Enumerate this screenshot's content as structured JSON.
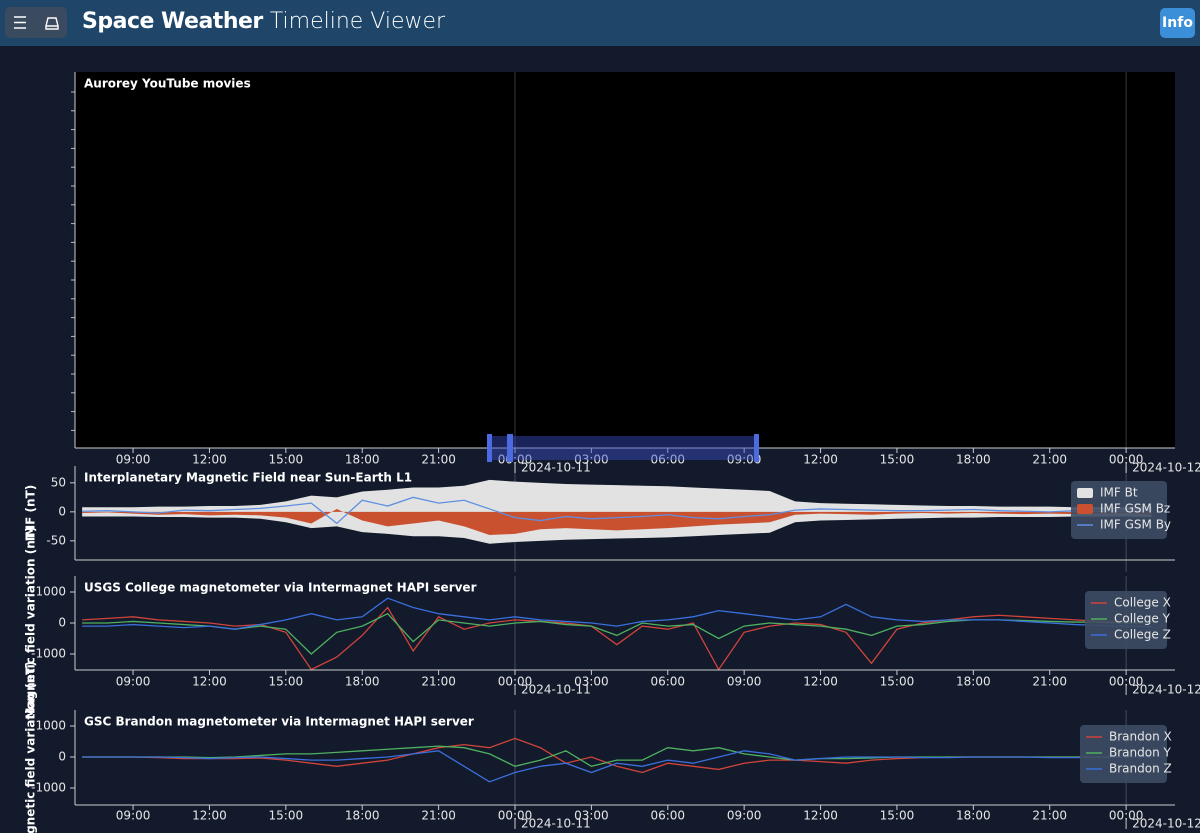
{
  "header": {
    "title_bold": "Space Weather",
    "title_light": "Timeline Viewer",
    "info_button": "Info"
  },
  "chart_data": [
    {
      "type": "timeline",
      "title": "Aurorey YouTube movies",
      "xlim": [
        6.72,
        49.92
      ],
      "xticks": [
        {
          "value": 9,
          "label": "09:00"
        },
        {
          "value": 12,
          "label": "12:00"
        },
        {
          "value": 15,
          "label": "15:00"
        },
        {
          "value": 18,
          "label": "18:00"
        },
        {
          "value": 21,
          "label": "21:00"
        },
        {
          "value": 24,
          "label": "00:00"
        },
        {
          "value": 27,
          "label": "03:00"
        },
        {
          "value": 30,
          "label": "06:00"
        },
        {
          "value": 33,
          "label": "09:00"
        },
        {
          "value": 36,
          "label": "12:00"
        },
        {
          "value": 39,
          "label": "15:00"
        },
        {
          "value": 42,
          "label": "18:00"
        },
        {
          "value": 45,
          "label": "21:00"
        },
        {
          "value": 48,
          "label": "00:00"
        }
      ],
      "day_labels": [
        {
          "value": 24,
          "label": "2024-10-11"
        },
        {
          "value": 48,
          "label": "2024-10-12"
        }
      ]
    },
    {
      "type": "line",
      "title": "Interplanetary Magnetic Field near Sun-Earth L1",
      "ylabel": "IMF (nT)",
      "xlim": [
        6.72,
        49.92
      ],
      "ylim": [
        -83,
        79
      ],
      "yticks": [
        50,
        0,
        -50
      ],
      "day_lines": [
        24,
        48
      ],
      "legend": "top-right",
      "x": [
        7,
        8,
        9,
        10,
        11,
        12,
        13,
        14,
        15,
        16,
        17,
        18,
        19,
        20,
        21,
        22,
        23,
        24,
        25,
        26,
        27,
        28,
        29,
        30,
        31,
        32,
        33,
        34,
        35,
        36,
        37,
        38,
        39,
        40,
        41,
        42,
        43,
        44,
        45,
        46,
        47,
        48,
        49
      ],
      "series": [
        {
          "name": "IMF Bt",
          "style": "band",
          "color": "#e2e2e2",
          "values": [
            8,
            8,
            8,
            9,
            9,
            10,
            10,
            12,
            18,
            28,
            25,
            35,
            38,
            42,
            42,
            45,
            55,
            52,
            50,
            48,
            47,
            46,
            45,
            44,
            42,
            40,
            38,
            36,
            18,
            15,
            14,
            13,
            12,
            11,
            10,
            10,
            9,
            9,
            9,
            8,
            8,
            8,
            9
          ]
        },
        {
          "name": "IMF GSM Bz",
          "style": "area",
          "color": "#c9512f",
          "values": [
            -2,
            -1,
            -3,
            -5,
            -4,
            -6,
            -5,
            -6,
            -10,
            -20,
            5,
            -15,
            -25,
            -20,
            -15,
            -25,
            -40,
            -38,
            -30,
            -28,
            -30,
            -32,
            -30,
            -28,
            -25,
            -22,
            -20,
            -18,
            -5,
            -3,
            -4,
            -5,
            -3,
            -2,
            -3,
            -2,
            -3,
            -4,
            -3,
            -4,
            -3,
            -2,
            -5
          ]
        },
        {
          "name": "IMF GSM By",
          "style": "line",
          "color": "#5f8fe0",
          "values": [
            1,
            2,
            0,
            -2,
            3,
            2,
            4,
            6,
            10,
            15,
            -20,
            20,
            10,
            25,
            15,
            20,
            5,
            -10,
            -15,
            -8,
            -12,
            -10,
            -8,
            -5,
            -10,
            -12,
            -8,
            -5,
            3,
            5,
            4,
            3,
            2,
            2,
            3,
            4,
            2,
            1,
            0,
            2,
            3,
            2,
            1
          ]
        }
      ]
    },
    {
      "type": "line",
      "title": "USGS College magnetometer via Intermagnet HAPI server",
      "ylabel": "Magnetic field variation (nT)",
      "xlim": [
        6.72,
        49.92
      ],
      "ylim": [
        -1516,
        1516
      ],
      "yticks": [
        1000,
        0,
        -1000
      ],
      "legend": "top-right",
      "xticks": [
        {
          "value": 9,
          "label": "09:00"
        },
        {
          "value": 12,
          "label": "12:00"
        },
        {
          "value": 15,
          "label": "15:00"
        },
        {
          "value": 18,
          "label": "18:00"
        },
        {
          "value": 21,
          "label": "21:00"
        },
        {
          "value": 24,
          "label": "00:00"
        },
        {
          "value": 27,
          "label": "03:00"
        },
        {
          "value": 30,
          "label": "06:00"
        },
        {
          "value": 33,
          "label": "09:00"
        },
        {
          "value": 36,
          "label": "12:00"
        },
        {
          "value": 39,
          "label": "15:00"
        },
        {
          "value": 42,
          "label": "18:00"
        },
        {
          "value": 45,
          "label": "21:00"
        },
        {
          "value": 48,
          "label": "00:00"
        }
      ],
      "day_labels": [
        {
          "value": 24,
          "label": "2024-10-11"
        },
        {
          "value": 48,
          "label": "2024-10-12"
        }
      ],
      "x": [
        7,
        8,
        9,
        10,
        11,
        12,
        13,
        14,
        15,
        16,
        17,
        18,
        19,
        20,
        21,
        22,
        23,
        24,
        25,
        26,
        27,
        28,
        29,
        30,
        31,
        32,
        33,
        34,
        35,
        36,
        37,
        38,
        39,
        40,
        41,
        42,
        43,
        44,
        45,
        46,
        47,
        48,
        49
      ],
      "series": [
        {
          "name": "College X",
          "style": "line",
          "color": "#d0443a",
          "values": [
            100,
            150,
            200,
            100,
            50,
            0,
            -100,
            -50,
            -300,
            -1500,
            -1100,
            -400,
            500,
            -900,
            200,
            -200,
            0,
            100,
            50,
            0,
            -100,
            -700,
            -100,
            -200,
            0,
            -1500,
            -300,
            -100,
            0,
            -50,
            -300,
            -1300,
            -200,
            0,
            100,
            200,
            250,
            200,
            150,
            100,
            50,
            20,
            0
          ]
        },
        {
          "name": "College Y",
          "style": "line",
          "color": "#4fb160",
          "values": [
            0,
            0,
            50,
            0,
            -50,
            -100,
            -200,
            -100,
            -200,
            -1000,
            -300,
            -100,
            300,
            -600,
            100,
            0,
            -100,
            0,
            50,
            -50,
            -100,
            -400,
            0,
            -100,
            -50,
            -500,
            -100,
            0,
            -50,
            -100,
            -200,
            -400,
            -100,
            -50,
            50,
            100,
            100,
            80,
            50,
            30,
            20,
            0,
            0
          ]
        },
        {
          "name": "College Z",
          "style": "line",
          "color": "#3b6fdc",
          "values": [
            -100,
            -100,
            -50,
            -100,
            -150,
            -100,
            -200,
            -50,
            100,
            300,
            100,
            200,
            800,
            500,
            300,
            200,
            100,
            200,
            100,
            50,
            0,
            -100,
            50,
            100,
            200,
            400,
            300,
            200,
            100,
            200,
            600,
            200,
            100,
            50,
            100,
            100,
            100,
            50,
            0,
            -50,
            -80,
            -100,
            -120
          ]
        }
      ]
    },
    {
      "type": "line",
      "title": "GSC Brandon magnetometer via Intermagnet HAPI server",
      "ylabel": "Magnetic field variation (nT)",
      "xlim": [
        6.72,
        49.92
      ],
      "ylim": [
        -1548,
        1516
      ],
      "yticks": [
        1000,
        0,
        -1000
      ],
      "legend": "top-right",
      "xticks": [
        {
          "value": 9,
          "label": "09:00"
        },
        {
          "value": 12,
          "label": "12:00"
        },
        {
          "value": 15,
          "label": "15:00"
        },
        {
          "value": 18,
          "label": "18:00"
        },
        {
          "value": 21,
          "label": "21:00"
        },
        {
          "value": 24,
          "label": "00:00"
        },
        {
          "value": 27,
          "label": "03:00"
        },
        {
          "value": 30,
          "label": "06:00"
        },
        {
          "value": 33,
          "label": "09:00"
        },
        {
          "value": 36,
          "label": "12:00"
        },
        {
          "value": 39,
          "label": "15:00"
        },
        {
          "value": 42,
          "label": "18:00"
        },
        {
          "value": 45,
          "label": "21:00"
        },
        {
          "value": 48,
          "label": "00:00"
        }
      ],
      "day_labels": [
        {
          "value": 24,
          "label": "2024-10-11"
        },
        {
          "value": 48,
          "label": "2024-10-12"
        }
      ],
      "x": [
        7,
        8,
        9,
        10,
        11,
        12,
        13,
        14,
        15,
        16,
        17,
        18,
        19,
        20,
        21,
        22,
        23,
        24,
        25,
        26,
        27,
        28,
        29,
        30,
        31,
        32,
        33,
        34,
        35,
        36,
        37,
        38,
        39,
        40,
        41,
        42,
        43,
        44,
        45,
        46,
        47,
        48,
        49
      ],
      "series": [
        {
          "name": "Brandon X",
          "style": "line",
          "color": "#d0443a",
          "values": [
            0,
            0,
            0,
            -20,
            -50,
            -50,
            -50,
            -30,
            -100,
            -200,
            -300,
            -200,
            -100,
            100,
            300,
            400,
            300,
            600,
            300,
            -200,
            0,
            -300,
            -500,
            -200,
            -300,
            -400,
            -200,
            -100,
            -100,
            -150,
            -200,
            -100,
            -50,
            -20,
            0,
            0,
            0,
            0,
            0,
            0,
            0,
            0,
            0
          ]
        },
        {
          "name": "Brandon Y",
          "style": "line",
          "color": "#4fb160",
          "values": [
            0,
            0,
            0,
            0,
            0,
            -20,
            0,
            50,
            100,
            100,
            150,
            200,
            250,
            300,
            350,
            300,
            100,
            -300,
            -100,
            200,
            -300,
            -100,
            -100,
            300,
            200,
            300,
            100,
            0,
            -100,
            -50,
            -50,
            -30,
            0,
            0,
            0,
            0,
            0,
            0,
            0,
            0,
            0,
            0,
            0
          ]
        },
        {
          "name": "Brandon Z",
          "style": "line",
          "color": "#3b6fdc",
          "values": [
            0,
            0,
            0,
            0,
            -20,
            -50,
            -20,
            0,
            -50,
            -100,
            -100,
            -50,
            0,
            100,
            200,
            -300,
            -800,
            -500,
            -300,
            -200,
            -500,
            -200,
            -300,
            -100,
            -200,
            0,
            200,
            100,
            -100,
            -50,
            0,
            0,
            0,
            -20,
            -20,
            0,
            0,
            0,
            -20,
            -20,
            -20,
            0,
            0
          ]
        }
      ]
    }
  ]
}
